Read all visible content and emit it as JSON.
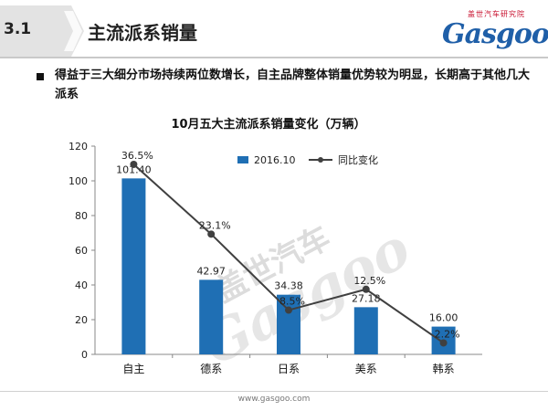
{
  "header": {
    "section_number": "3.1",
    "section_title": "主流派系销量",
    "logo_sub": "盖世汽车研究院",
    "logo_main": "Gasgoo"
  },
  "bullet_text": "得益于三大细分市场持续两位数增长，自主品牌整体销量优势较为明显，长期高于其他几大派系",
  "footer": {
    "url": "www.gasgoo.com"
  },
  "watermark": {
    "cn": "盖世汽车",
    "en": "Gasgoo"
  },
  "colors": {
    "bar": "#1f6fb4",
    "line": "#404040",
    "title_band": "#e3e3e3",
    "logo_blue": "#1f5fa8",
    "logo_red": "#c8102e"
  },
  "chart_data": {
    "type": "bar",
    "title": "10月五大主流派系销量变化（万辆）",
    "categories": [
      "自主",
      "德系",
      "日系",
      "美系",
      "韩系"
    ],
    "series": [
      {
        "name": "2016.10",
        "type": "bar",
        "values": [
          101.4,
          42.97,
          34.38,
          27.18,
          16.0
        ],
        "labels": [
          "101.40",
          "42.97",
          "34.38",
          "27.18",
          "16.00"
        ]
      },
      {
        "name": "同比变化",
        "type": "line",
        "values": [
          36.5,
          23.1,
          8.5,
          12.5,
          2.2
        ],
        "labels": [
          "36.5%",
          "23.1%",
          "8.5%",
          "12.5%",
          "2.2%"
        ]
      }
    ],
    "y_ticks": [
      "0",
      "20",
      "40",
      "60",
      "80",
      "100",
      "120"
    ],
    "ylim": [
      0,
      120
    ],
    "line_axis": "secondary (hidden)",
    "legend_position": "top-right",
    "grid": false
  }
}
